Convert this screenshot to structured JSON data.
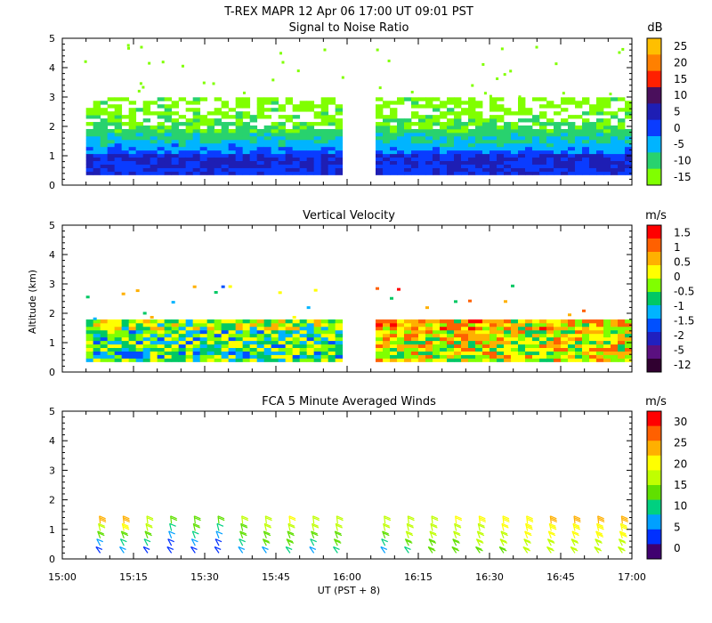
{
  "title": "T-REX  MAPR 12 Apr 06  17:00 UT  09:01  PST",
  "xlabel": "UT  (PST + 8)",
  "ylabel": "Altitude (km)",
  "x_ticks": [
    "15:00",
    "15:15",
    "15:30",
    "15:45",
    "16:00",
    "16:15",
    "16:30",
    "16:45",
    "17:00"
  ],
  "y_ticks": [
    "0",
    "1",
    "2",
    "3",
    "4",
    "5"
  ],
  "chart_data": [
    {
      "type": "heatmap",
      "title": "Signal to Noise Ratio",
      "units": "dB",
      "x_range_hours_ut": [
        15.0,
        17.0
      ],
      "ylim_km": [
        0,
        5
      ],
      "data_gap_ut": [
        "15:59",
        "16:06"
      ],
      "colorbar_ticks": [
        "25",
        "20",
        "15",
        "10",
        "5",
        "0",
        "-5",
        "-10",
        "-15"
      ],
      "colors": [
        "#ffbf00",
        "#ff8000",
        "#ff2000",
        "#4a0f5c",
        "#1e1eb4",
        "#0a3cff",
        "#00b4ff",
        "#28d26e",
        "#80ff00"
      ],
      "profile_sample": [
        {
          "altitude_km": 0.5,
          "snr_db": 2
        },
        {
          "altitude_km": 0.9,
          "snr_db": 3
        },
        {
          "altitude_km": 1.2,
          "snr_db": -4
        },
        {
          "altitude_km": 1.6,
          "snr_db": -9
        },
        {
          "altitude_km": 2.2,
          "snr_db": -14
        },
        {
          "altitude_km": 2.6,
          "snr_db": -15
        }
      ]
    },
    {
      "type": "heatmap",
      "title": "Vertical Velocity",
      "units": "m/s",
      "x_range_hours_ut": [
        15.0,
        17.0
      ],
      "ylim_km": [
        0,
        5
      ],
      "data_gap_ut": [
        "15:59",
        "16:06"
      ],
      "colorbar_ticks": [
        "1.5",
        "1",
        "0.5",
        "0",
        "-0.5",
        "-1",
        "-1.5",
        "-2",
        "-5",
        "-12"
      ],
      "colors": [
        "#ff0000",
        "#ff6000",
        "#ffb000",
        "#ffff00",
        "#80ff00",
        "#00c864",
        "#00b4ff",
        "#0050ff",
        "#2020c0",
        "#5a1080",
        "#300030"
      ],
      "segment_means_m_s": [
        {
          "start_ut": "15:05",
          "end_ut": "15:59",
          "mean_w": -0.6
        },
        {
          "start_ut": "16:06",
          "end_ut": "17:00",
          "mean_w": 0.2
        }
      ]
    },
    {
      "type": "wind_barbs",
      "title": "FCA 5 Minute Averaged Winds",
      "units": "m/s",
      "x_range_hours_ut": [
        15.0,
        17.0
      ],
      "ylim_km": [
        0,
        5
      ],
      "colorbar_ticks": [
        "30",
        "25",
        "20",
        "15",
        "10",
        "5",
        "0"
      ],
      "colors": [
        "#ff0000",
        "#ff6000",
        "#ffb000",
        "#ffff00",
        "#c0ff00",
        "#60e000",
        "#00d080",
        "#00a0ff",
        "#0030ff",
        "#400070"
      ],
      "profile_times_ut": [
        "15:08",
        "15:13",
        "15:18",
        "15:23",
        "15:28",
        "15:33",
        "15:38",
        "15:43",
        "15:48",
        "15:53",
        "15:58",
        "16:08",
        "16:13",
        "16:18",
        "16:23",
        "16:28",
        "16:33",
        "16:38",
        "16:43",
        "16:48",
        "16:53",
        "16:58"
      ],
      "profile_altitudes_km": [
        0.2,
        0.45,
        0.7,
        0.95,
        1.2
      ],
      "speed_m_s_by_profile": [
        [
          4,
          8,
          12,
          18,
          23
        ],
        [
          6,
          10,
          14,
          20,
          25
        ],
        [
          5,
          9,
          13,
          16,
          18
        ],
        [
          3,
          5,
          8,
          10,
          12
        ],
        [
          4,
          6,
          9,
          12,
          14
        ],
        [
          3,
          5,
          8,
          11,
          13
        ],
        [
          6,
          9,
          12,
          15,
          17
        ],
        [
          8,
          12,
          15,
          17,
          18
        ],
        [
          9,
          12,
          15,
          17,
          19
        ],
        [
          8,
          11,
          14,
          17,
          18
        ],
        [
          9,
          12,
          15,
          17,
          18
        ],
        [
          8,
          11,
          14,
          16,
          17
        ],
        [
          11,
          13,
          16,
          17,
          18
        ],
        [
          12,
          14,
          16,
          18,
          18
        ],
        [
          13,
          15,
          17,
          18,
          19
        ],
        [
          14,
          16,
          17,
          18,
          20
        ],
        [
          15,
          17,
          18,
          19,
          21
        ],
        [
          16,
          17,
          19,
          20,
          21
        ],
        [
          16,
          18,
          19,
          20,
          22
        ],
        [
          17,
          18,
          19,
          21,
          22
        ],
        [
          17,
          18,
          20,
          21,
          22
        ],
        [
          16,
          18,
          20,
          21,
          22
        ]
      ]
    }
  ]
}
